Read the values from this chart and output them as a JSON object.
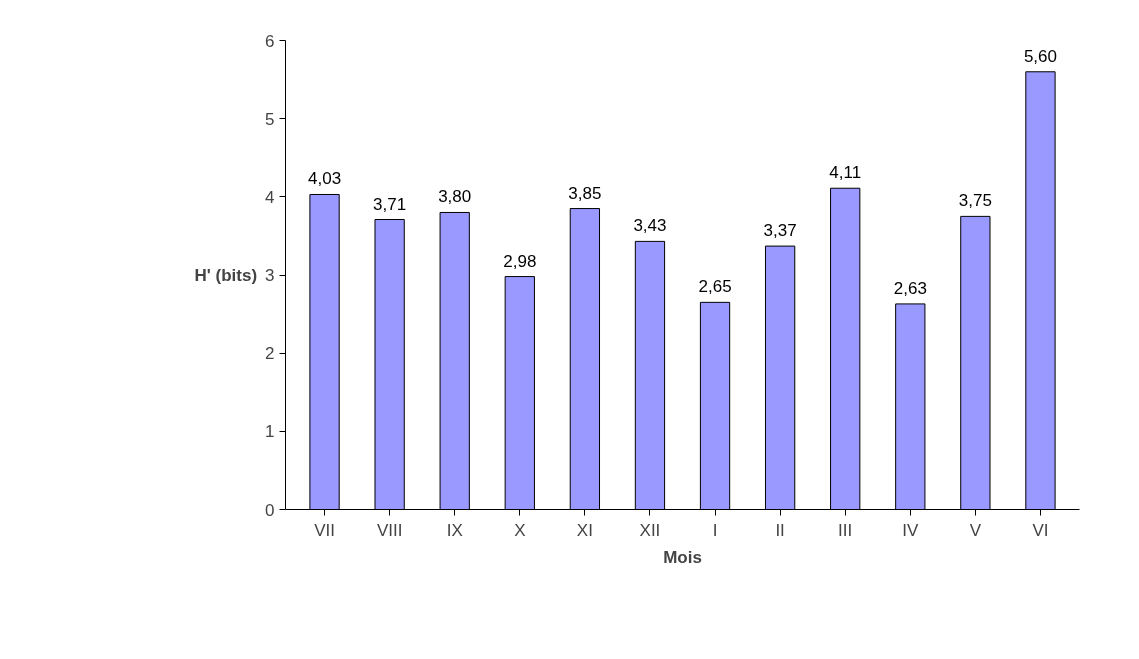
{
  "chart_data": {
    "type": "bar",
    "xlabel": "Mois",
    "ylabel": "H' (bits)",
    "categories": [
      "VII",
      "VIII",
      "IX",
      "X",
      "XI",
      "XII",
      "I",
      "II",
      "III",
      "IV",
      "V",
      "VI"
    ],
    "values": [
      4.03,
      3.71,
      3.8,
      2.98,
      3.85,
      3.43,
      2.65,
      3.37,
      4.11,
      2.63,
      3.75,
      5.6
    ],
    "value_labels": [
      "4,03",
      "3,71",
      "3,80",
      "2,98",
      "3,85",
      "3,43",
      "2,65",
      "3,37",
      "4,11",
      "2,63",
      "3,75",
      "5,60"
    ],
    "color": "#9999ff",
    "ylim": [
      0,
      6
    ],
    "yticks": [
      0,
      1,
      2,
      3,
      4,
      5,
      6
    ],
    "grid": false
  }
}
